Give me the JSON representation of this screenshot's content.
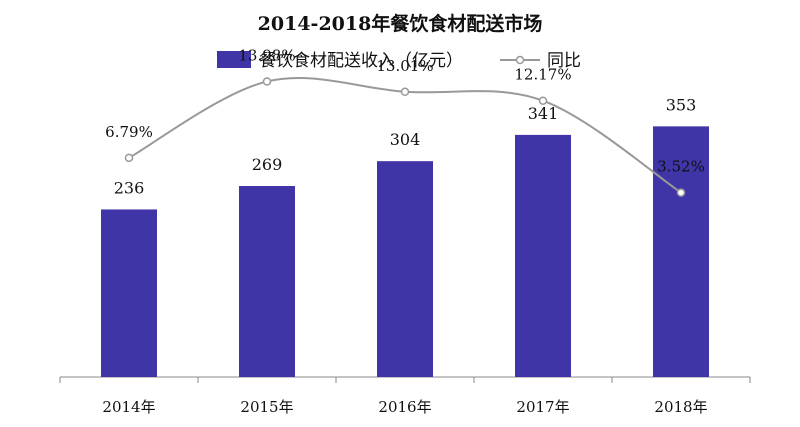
{
  "chart_data": {
    "type": "bar",
    "title": "2014-2018年餐饮食材配送市场",
    "categories": [
      "2014年",
      "2015年",
      "2016年",
      "2017年",
      "2018年"
    ],
    "series": [
      {
        "name": "餐饮食材配送收入（亿元）",
        "type": "bar",
        "axis": "left",
        "values": [
          236,
          269,
          304,
          341,
          353
        ],
        "labels": [
          "236",
          "269",
          "304",
          "341",
          "353"
        ]
      },
      {
        "name": "同比",
        "type": "line",
        "axis": "right",
        "values": [
          6.79,
          13.98,
          13.01,
          12.17,
          3.52
        ],
        "labels": [
          "6.79%",
          "13.98%",
          "13.01%",
          "12.17%",
          "3.52%"
        ]
      }
    ],
    "legend_position": "top-center",
    "grid": false
  },
  "colors": {
    "bar": "#3f35a7",
    "line": "#999999",
    "marker_fill": "#ffffff",
    "axis": "#888888"
  }
}
